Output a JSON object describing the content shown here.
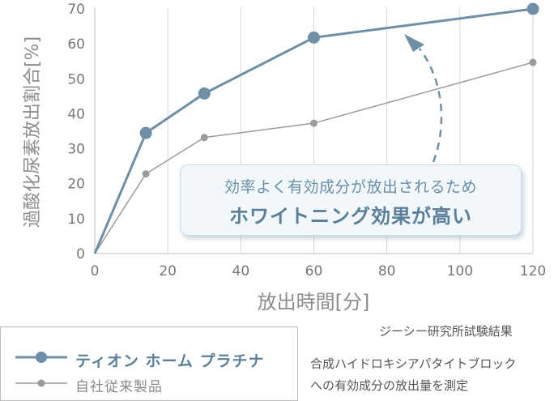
{
  "chart_data": {
    "type": "line",
    "xlabel": "放出時間[分]",
    "ylabel": "過酸化尿素放出割合[%]",
    "xlim": [
      0,
      120
    ],
    "ylim": [
      0,
      70
    ],
    "x_ticks": [
      0,
      20,
      40,
      60,
      80,
      100,
      120
    ],
    "y_ticks": [
      0,
      10,
      20,
      30,
      40,
      50,
      60,
      70
    ],
    "grid": "vertical",
    "series": [
      {
        "name": "ティオン ホーム プラチナ",
        "color": "#6e8fa6",
        "x": [
          0,
          14,
          30,
          60,
          120
        ],
        "y": [
          0,
          34.5,
          45.8,
          61.8,
          70
        ]
      },
      {
        "name": "自社従来製品",
        "color": "#9a9a9a",
        "x": [
          0,
          14,
          30,
          60,
          120
        ],
        "y": [
          0,
          22.8,
          33.2,
          37.3,
          54.7
        ]
      }
    ],
    "annotation": {
      "line1": "効率よく有効成分が放出されるため",
      "line2": "ホワイトニング効果が高い"
    },
    "legend_position": "bottom-left"
  },
  "source_note": "ジーシー研究所試験結果",
  "description_note": [
    "合成ハイドロキシアパタイトブロック",
    "への有効成分の放出量を測定"
  ],
  "colors": {
    "accent": "#6e8fa6",
    "grey": "#9a9a9a",
    "callout_bg": "#f2f7fb"
  }
}
